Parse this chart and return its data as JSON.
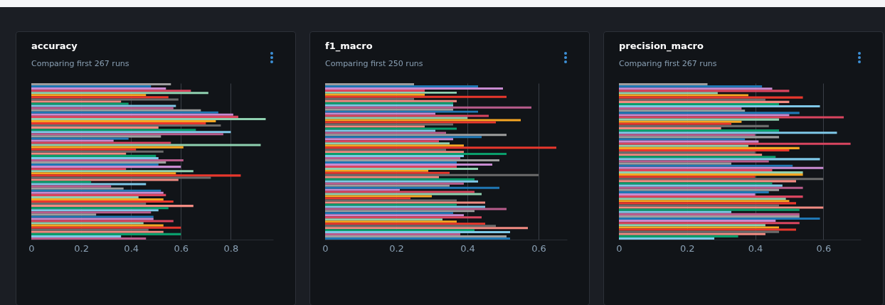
{
  "chart_data": [
    {
      "type": "bar",
      "orientation": "horizontal",
      "title": "accuracy",
      "subtitle": "Comparing first 267 runs",
      "grid": "x",
      "xlim": [
        0,
        0.97
      ],
      "xticks": [
        0,
        0.2,
        0.4,
        0.6,
        0.8
      ],
      "colors": [
        "#9e9e9e",
        "#1f77b4",
        "#c98bd1",
        "#d9455f",
        "#8fd1b0",
        "#f5a623",
        "#e8372c",
        "#6b6b6b",
        "#f28b82",
        "#0a9d6b",
        "#7fc8e8",
        "#b85c8c",
        "#9e9e9e",
        "#1f77b4",
        "#c98bd1",
        "#d9455f",
        "#8fd1b0",
        "#f5a623",
        "#e8372c",
        "#6b6b6b",
        "#f28b82",
        "#0a9d6b",
        "#7fc8e8",
        "#b85c8c",
        "#9e9e9e",
        "#1f77b4",
        "#c98bd1",
        "#d9455f",
        "#8fd1b0",
        "#f5a623",
        "#e8372c",
        "#6b6b6b",
        "#f28b82",
        "#0a9d6b",
        "#7fc8e8",
        "#b85c8c",
        "#9e9e9e",
        "#1f77b4",
        "#c98bd1",
        "#d9455f",
        "#8fd1b0",
        "#f5a623",
        "#e8372c",
        "#6b6b6b",
        "#f28b82",
        "#0a9d6b",
        "#7fc8e8",
        "#b85c8c",
        "#9e9e9e",
        "#1f77b4",
        "#c98bd1",
        "#d9455f",
        "#8fd1b0",
        "#f5a623",
        "#e8372c",
        "#6b6b6b",
        "#f28b82",
        "#0a9d6b",
        "#7fc8e8",
        "#b85c8c",
        "#9e9e9e",
        "#1f77b4",
        "#c98bd1",
        "#d9455f",
        "#8fd1b0",
        "#f5a623",
        "#e8372c",
        "#6b6b6b",
        "#f28b82",
        "#0a9d6b",
        "#7fc8e8",
        "#b85c8c"
      ],
      "categories": [
        null,
        null,
        null,
        null,
        null,
        null,
        null,
        null,
        null,
        null,
        null,
        null,
        null,
        null,
        null,
        null,
        null,
        null,
        null,
        null,
        null,
        null,
        null,
        null,
        null,
        null,
        null,
        null,
        null,
        null,
        null,
        null,
        null,
        null,
        null,
        null,
        null,
        null,
        null,
        null,
        null,
        null,
        null,
        null,
        null,
        null,
        null,
        null,
        null,
        null,
        null,
        null,
        null,
        null,
        null,
        null,
        null,
        null,
        null,
        null,
        null,
        null,
        null,
        null,
        null,
        null,
        null,
        null,
        null,
        null,
        null,
        null
      ],
      "values": [
        0.56,
        0.48,
        0.54,
        0.64,
        0.71,
        0.46,
        0.55,
        0.59,
        0.36,
        0.39,
        0.58,
        0.57,
        0.68,
        0.75,
        0.81,
        0.83,
        0.94,
        0.74,
        0.7,
        0.76,
        0.51,
        0.66,
        0.8,
        0.77,
        0.52,
        0.39,
        0.33,
        0.56,
        0.92,
        0.61,
        0.42,
        0.53,
        0.38,
        0.5,
        0.51,
        0.61,
        0.54,
        0.51,
        0.6,
        0.38,
        0.65,
        0.58,
        0.84,
        0.72,
        0.59,
        0.24,
        0.46,
        0.32,
        0.37,
        0.52,
        0.53,
        0.54,
        0.43,
        0.53,
        0.57,
        0.46,
        0.65,
        0.55,
        0.51,
        0.48,
        0.26,
        0.49,
        0.49,
        0.57,
        0.45,
        0.53,
        0.6,
        0.47,
        0.53,
        0.6,
        0.36,
        0.46
      ]
    },
    {
      "type": "bar",
      "orientation": "horizontal",
      "title": "f1_macro",
      "subtitle": "Comparing first 250 runs",
      "grid": "x",
      "xlim": [
        0,
        0.68
      ],
      "xticks": [
        0,
        0.2,
        0.4,
        0.6
      ],
      "colors": [
        "#9e9e9e",
        "#1f77b4",
        "#c98bd1",
        "#d9455f",
        "#8fd1b0",
        "#f5a623",
        "#e8372c",
        "#6b6b6b",
        "#f28b82",
        "#0a9d6b",
        "#7fc8e8",
        "#b85c8c",
        "#9e9e9e",
        "#1f77b4",
        "#c98bd1",
        "#d9455f",
        "#8fd1b0",
        "#f5a623",
        "#e8372c",
        "#6b6b6b",
        "#f28b82",
        "#0a9d6b",
        "#7fc8e8",
        "#b85c8c",
        "#9e9e9e",
        "#1f77b4",
        "#c98bd1",
        "#d9455f",
        "#8fd1b0",
        "#f5a623",
        "#e8372c",
        "#6b6b6b",
        "#f28b82",
        "#0a9d6b",
        "#7fc8e8",
        "#b85c8c",
        "#9e9e9e",
        "#1f77b4",
        "#c98bd1",
        "#d9455f",
        "#8fd1b0",
        "#f5a623",
        "#e8372c",
        "#6b6b6b",
        "#f28b82",
        "#0a9d6b",
        "#7fc8e8",
        "#b85c8c",
        "#9e9e9e",
        "#1f77b4",
        "#c98bd1",
        "#d9455f",
        "#8fd1b0",
        "#f5a623",
        "#e8372c",
        "#6b6b6b",
        "#f28b82",
        "#0a9d6b",
        "#7fc8e8",
        "#b85c8c",
        "#9e9e9e",
        "#1f77b4",
        "#c98bd1",
        "#d9455f",
        "#8fd1b0",
        "#f5a623",
        "#e8372c",
        "#6b6b6b",
        "#f28b82",
        "#0a9d6b",
        "#7fc8e8",
        "#b85c8c",
        "#9e9e9e",
        "#1f77b4"
      ],
      "categories": [
        null,
        null,
        null,
        null,
        null,
        null,
        null,
        null,
        null,
        null,
        null,
        null,
        null,
        null,
        null,
        null,
        null,
        null,
        null,
        null,
        null,
        null,
        null,
        null,
        null,
        null,
        null,
        null,
        null,
        null,
        null,
        null,
        null,
        null,
        null,
        null,
        null,
        null,
        null,
        null,
        null,
        null,
        null,
        null,
        null,
        null,
        null,
        null,
        null,
        null,
        null,
        null,
        null,
        null,
        null,
        null,
        null,
        null,
        null,
        null,
        null,
        null,
        null,
        null,
        null,
        null,
        null,
        null,
        null,
        null,
        null,
        null,
        null,
        null
      ],
      "values": [
        0.25,
        0.43,
        0.5,
        0.28,
        0.37,
        0.28,
        0.51,
        0.25,
        0.37,
        0.36,
        0.36,
        0.58,
        0.36,
        0.43,
        0.31,
        0.46,
        0.4,
        0.55,
        0.48,
        0.36,
        0.28,
        0.37,
        0.31,
        0.34,
        0.51,
        0.44,
        0.36,
        0.32,
        0.35,
        0.39,
        0.65,
        0.34,
        0.39,
        0.51,
        0.39,
        0.38,
        0.49,
        0.37,
        0.47,
        0.37,
        0.43,
        0.29,
        0.35,
        0.6,
        0.32,
        0.42,
        0.43,
        0.39,
        0.35,
        0.49,
        0.21,
        0.42,
        0.44,
        0.3,
        0.24,
        0.37,
        0.45,
        0.37,
        0.45,
        0.51,
        0.42,
        0.36,
        0.39,
        0.44,
        0.33,
        0.37,
        0.45,
        0.48,
        0.57,
        0.42,
        0.52,
        0.38,
        0.51,
        0.52
      ]
    },
    {
      "type": "bar",
      "orientation": "horizontal",
      "title": "precision_macro",
      "subtitle": "Comparing first 267 runs",
      "grid": "x",
      "xlim": [
        0,
        0.71
      ],
      "xticks": [
        0,
        0.2,
        0.4,
        0.6
      ],
      "colors": [
        "#9e9e9e",
        "#1f77b4",
        "#c98bd1",
        "#d9455f",
        "#8fd1b0",
        "#f5a623",
        "#e8372c",
        "#6b6b6b",
        "#f28b82",
        "#0a9d6b",
        "#7fc8e8",
        "#b85c8c",
        "#9e9e9e",
        "#1f77b4",
        "#c98bd1",
        "#d9455f",
        "#8fd1b0",
        "#f5a623",
        "#e8372c",
        "#6b6b6b",
        "#f28b82",
        "#0a9d6b",
        "#7fc8e8",
        "#b85c8c",
        "#9e9e9e",
        "#1f77b4",
        "#c98bd1",
        "#d9455f",
        "#8fd1b0",
        "#f5a623",
        "#e8372c",
        "#6b6b6b",
        "#f28b82",
        "#0a9d6b",
        "#7fc8e8",
        "#b85c8c",
        "#9e9e9e",
        "#1f77b4",
        "#c98bd1",
        "#d9455f",
        "#8fd1b0",
        "#f5a623",
        "#e8372c",
        "#6b6b6b",
        "#f28b82",
        "#0a9d6b",
        "#7fc8e8",
        "#b85c8c",
        "#9e9e9e",
        "#1f77b4",
        "#c98bd1",
        "#d9455f",
        "#8fd1b0",
        "#f5a623",
        "#e8372c",
        "#6b6b6b",
        "#f28b82",
        "#0a9d6b",
        "#7fc8e8",
        "#b85c8c",
        "#9e9e9e",
        "#1f77b4",
        "#c98bd1",
        "#d9455f",
        "#8fd1b0",
        "#f5a623",
        "#e8372c",
        "#6b6b6b",
        "#f28b82",
        "#0a9d6b",
        "#7fc8e8"
      ],
      "categories": [
        null,
        null,
        null,
        null,
        null,
        null,
        null,
        null,
        null,
        null,
        null,
        null,
        null,
        null,
        null,
        null,
        null,
        null,
        null,
        null,
        null,
        null,
        null,
        null,
        null,
        null,
        null,
        null,
        null,
        null,
        null,
        null,
        null,
        null,
        null,
        null,
        null,
        null,
        null,
        null,
        null,
        null,
        null,
        null,
        null,
        null,
        null,
        null,
        null,
        null,
        null,
        null,
        null,
        null,
        null,
        null,
        null,
        null,
        null,
        null,
        null,
        null,
        null,
        null,
        null,
        null,
        null,
        null,
        null,
        null,
        null
      ],
      "values": [
        0.26,
        0.42,
        0.45,
        0.5,
        0.29,
        0.38,
        0.54,
        0.43,
        0.5,
        0.47,
        0.59,
        0.36,
        0.37,
        0.53,
        0.5,
        0.66,
        0.47,
        0.36,
        0.33,
        0.44,
        0.3,
        0.47,
        0.64,
        0.4,
        0.47,
        0.37,
        0.41,
        0.68,
        0.38,
        0.53,
        0.5,
        0.4,
        0.42,
        0.46,
        0.59,
        0.44,
        0.33,
        0.51,
        0.6,
        0.45,
        0.54,
        0.54,
        0.4,
        0.6,
        0.52,
        0.45,
        0.48,
        0.54,
        0.47,
        0.44,
        0.4,
        0.54,
        0.49,
        0.5,
        0.52,
        0.47,
        0.6,
        0.53,
        0.33,
        0.53,
        0.53,
        0.59,
        0.46,
        0.53,
        0.43,
        0.47,
        0.52,
        0.47,
        0.43,
        0.35,
        0.28
      ]
    }
  ]
}
